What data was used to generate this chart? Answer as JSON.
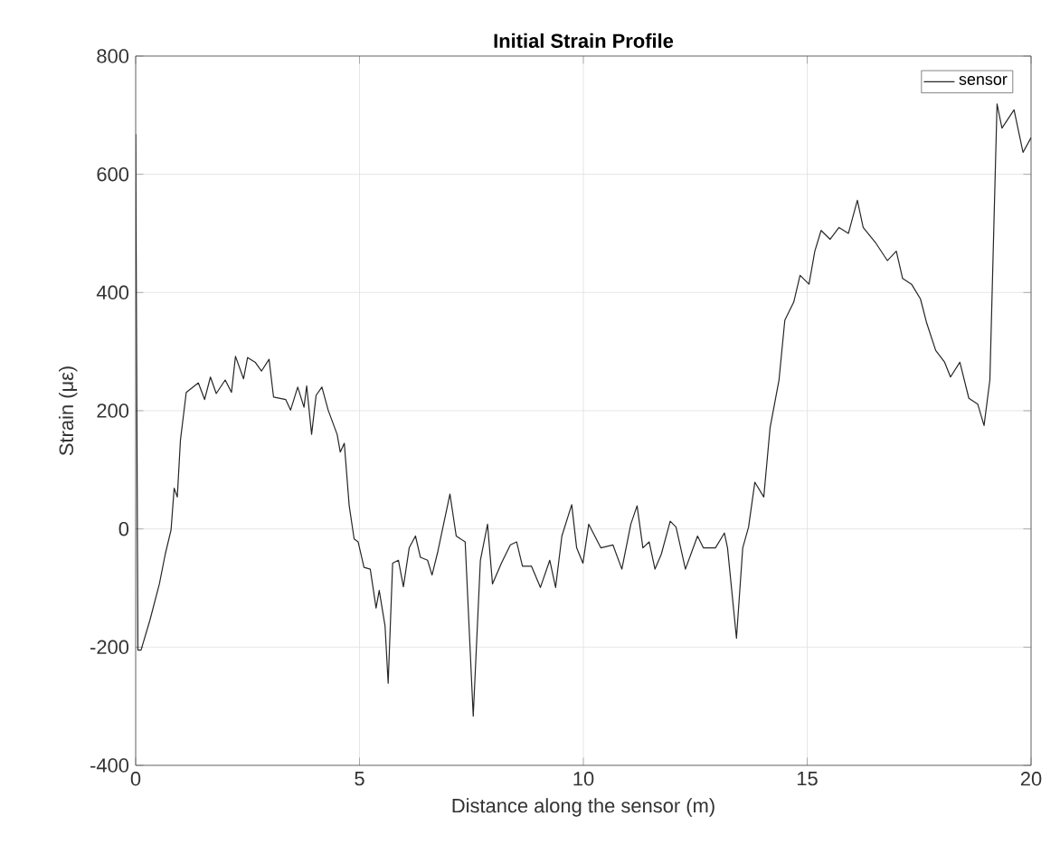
{
  "chart_data": {
    "type": "line",
    "title": "Initial Strain Profile",
    "xlabel": "Distance along the sensor (m)",
    "ylabel": "Strain (με)",
    "xlim": [
      0,
      20
    ],
    "xticks": [
      0,
      5,
      10,
      15,
      20
    ],
    "ylim": [
      -400,
      800
    ],
    "yticks": [
      -400,
      -200,
      0,
      200,
      400,
      600,
      800
    ],
    "grid": true,
    "legend": "top right",
    "marker": "none",
    "line_style": "solid",
    "series": [
      {
        "name": "sensor",
        "color": "#262626",
        "x": [
          0,
          0.05,
          0.12,
          0.32,
          0.53,
          0.66,
          0.79,
          0.86,
          0.93,
          1.0,
          1.13,
          1.4,
          1.54,
          1.67,
          1.8,
          2.0,
          2.14,
          2.23,
          2.41,
          2.5,
          2.67,
          2.81,
          2.98,
          3.08,
          3.35,
          3.46,
          3.62,
          3.76,
          3.82,
          3.93,
          4.03,
          4.16,
          4.3,
          4.5,
          4.57,
          4.66,
          4.77,
          4.88,
          4.97,
          5.1,
          5.24,
          5.37,
          5.44,
          5.57,
          5.64,
          5.74,
          5.87,
          5.98,
          6.11,
          6.25,
          6.36,
          6.52,
          6.62,
          6.75,
          7.02,
          7.16,
          7.36,
          7.54,
          7.7,
          7.86,
          7.97,
          8.17,
          8.37,
          8.51,
          8.64,
          8.84,
          9.04,
          9.25,
          9.38,
          9.52,
          9.74,
          9.85,
          9.99,
          10.12,
          10.39,
          10.66,
          10.86,
          11.06,
          11.2,
          11.33,
          11.47,
          11.6,
          11.74,
          11.94,
          12.07,
          12.28,
          12.55,
          12.68,
          12.95,
          13.15,
          13.22,
          13.42,
          13.56,
          13.69,
          13.83,
          14.03,
          14.17,
          14.37,
          14.5,
          14.7,
          14.84,
          15.04,
          15.17,
          15.31,
          15.51,
          15.71,
          15.92,
          16.12,
          16.25,
          16.52,
          16.79,
          16.99,
          17.13,
          17.33,
          17.53,
          17.67,
          17.87,
          18.07,
          18.2,
          18.41,
          18.61,
          18.81,
          18.95,
          19.08,
          19.24,
          19.35,
          19.62,
          19.82,
          20.0
        ],
        "values": [
          668,
          -205,
          -205,
          -154,
          -93,
          -43,
          -2,
          69,
          54,
          150,
          231,
          247,
          219,
          257,
          229,
          252,
          231,
          292,
          254,
          290,
          282,
          267,
          287,
          223,
          219,
          201,
          240,
          206,
          242,
          160,
          226,
          240,
          201,
          160,
          130,
          145,
          39,
          -17,
          -22,
          -65,
          -68,
          -134,
          -104,
          -164,
          -261,
          -58,
          -53,
          -98,
          -32,
          -12,
          -48,
          -53,
          -78,
          -38,
          59,
          -12,
          -22,
          -317,
          -53,
          8,
          -93,
          -58,
          -27,
          -22,
          -63,
          -63,
          -99,
          -53,
          -99,
          -12,
          41,
          -32,
          -58,
          8,
          -32,
          -27,
          -68,
          8,
          39,
          -32,
          -22,
          -68,
          -43,
          13,
          3,
          -68,
          -12,
          -32,
          -32,
          -7,
          -32,
          -185,
          -32,
          3,
          79,
          54,
          171,
          252,
          353,
          384,
          429,
          414,
          470,
          505,
          490,
          510,
          500,
          556,
          510,
          485,
          454,
          470,
          424,
          414,
          389,
          348,
          302,
          282,
          257,
          282,
          221,
          211,
          175,
          252,
          719,
          678,
          709,
          637,
          662
        ]
      }
    ]
  }
}
